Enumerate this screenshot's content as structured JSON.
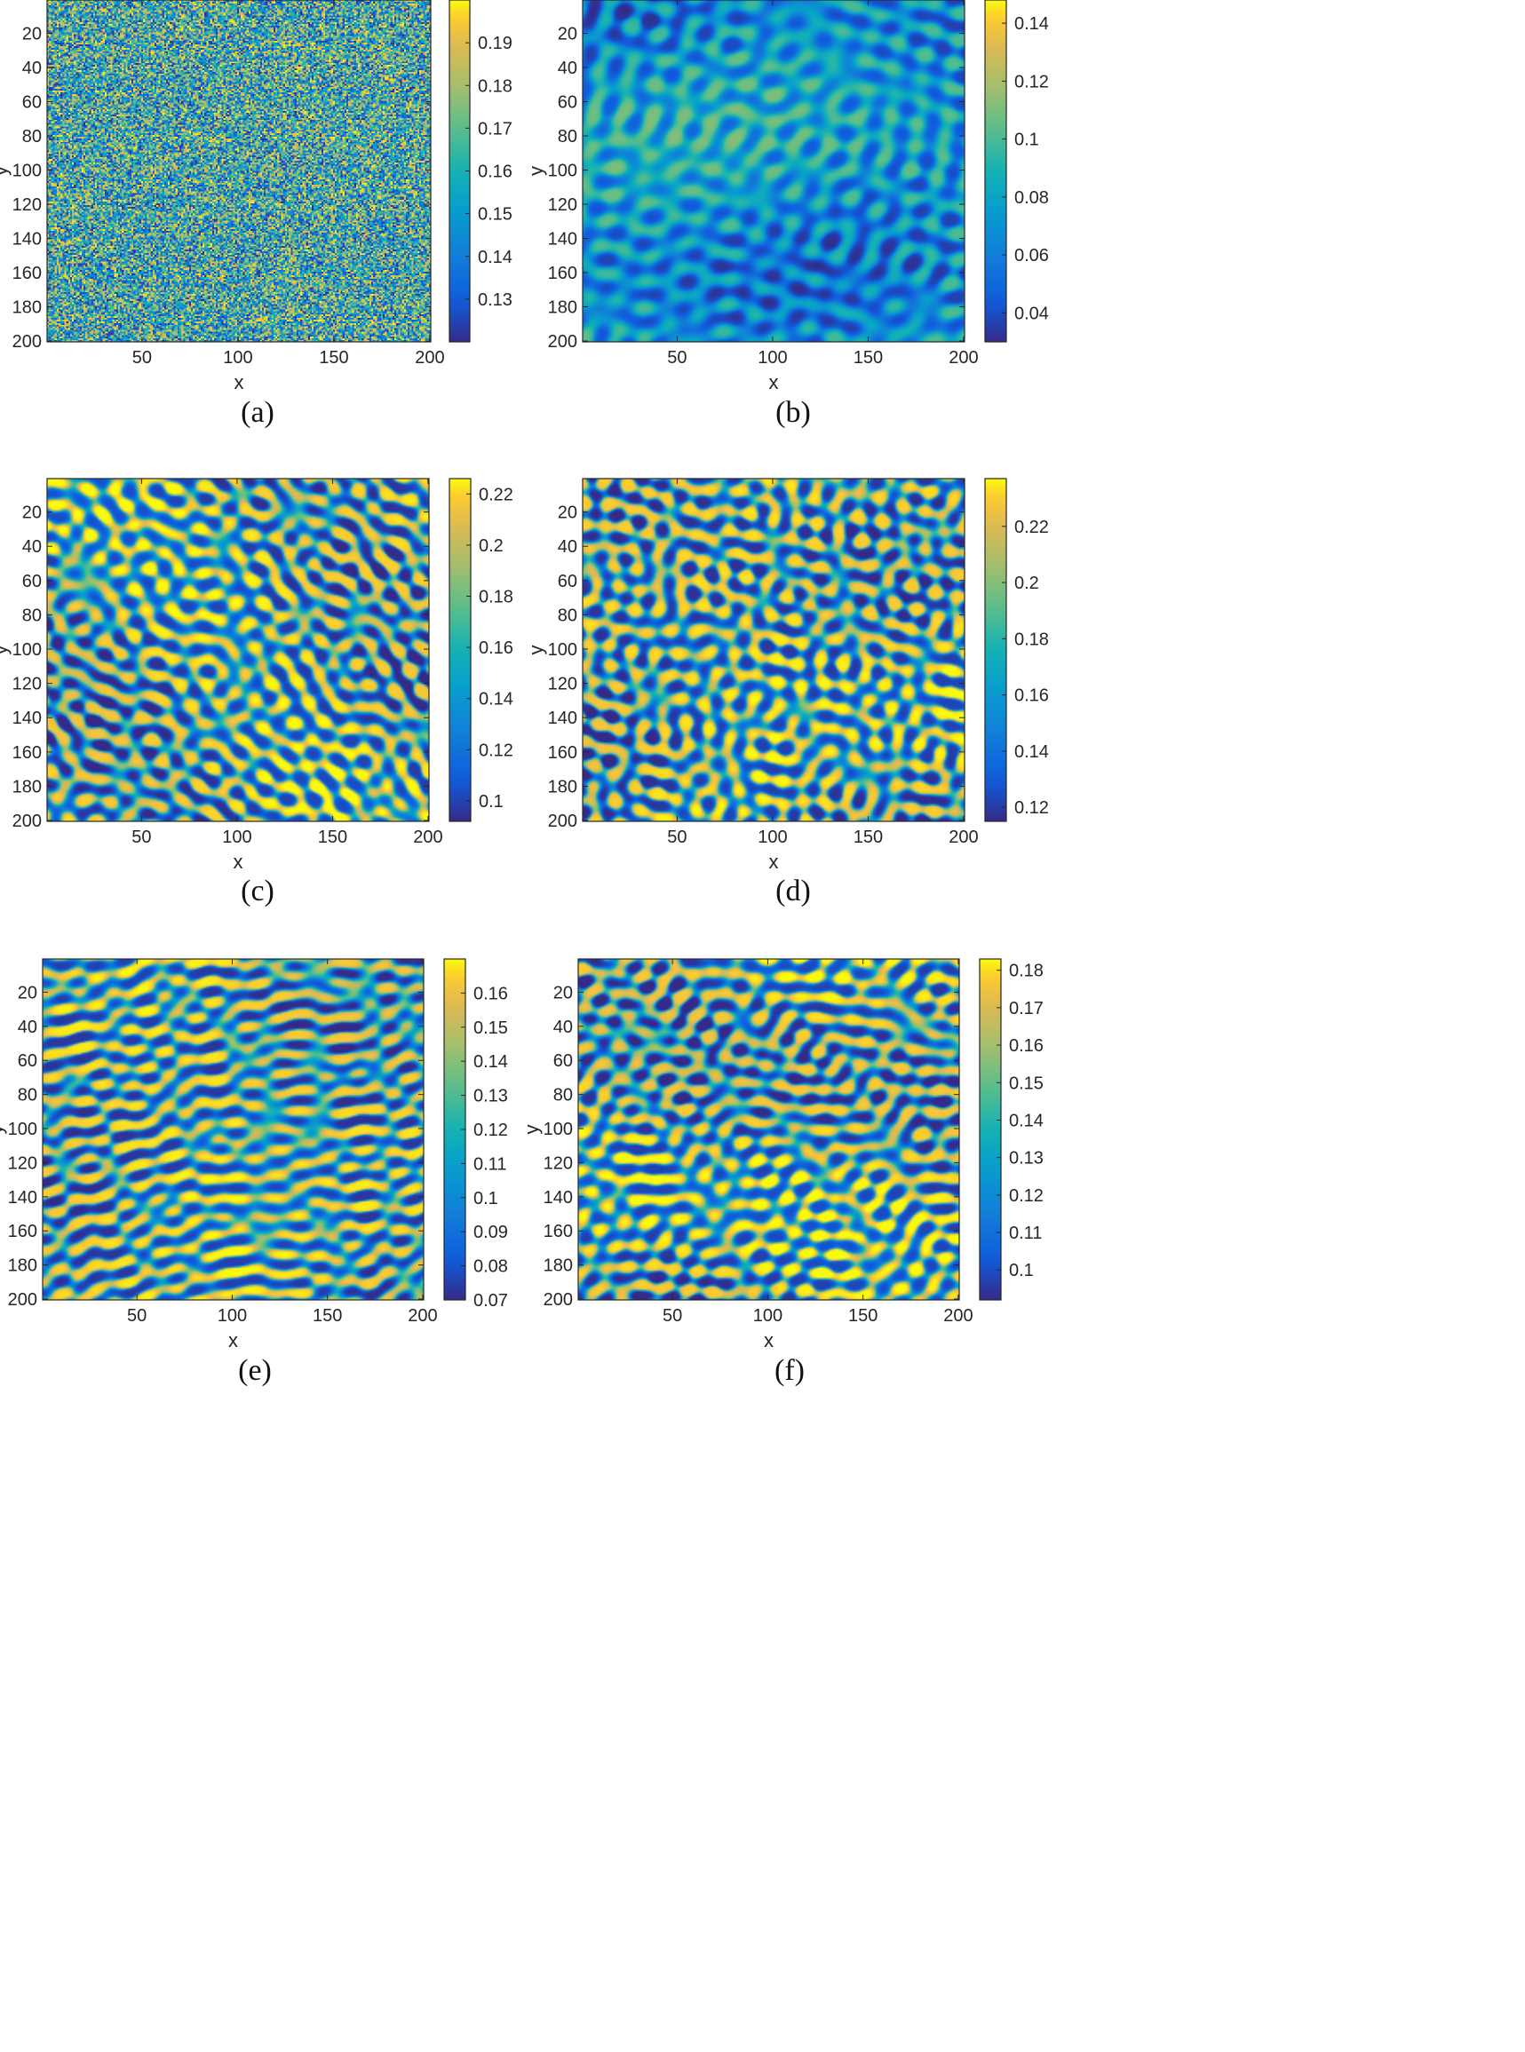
{
  "figure": {
    "captions": [
      "(a)",
      "(b)",
      "(c)",
      "(d)",
      "(e)",
      "(f)"
    ]
  },
  "chart_data": [
    {
      "type": "heatmap",
      "caption": "(a)",
      "xlabel": "x",
      "ylabel": "y",
      "x_ticks": [
        50,
        100,
        150,
        200
      ],
      "y_ticks": [
        20,
        40,
        60,
        80,
        100,
        120,
        140,
        160,
        180,
        200
      ],
      "xlim": [
        1,
        200
      ],
      "ylim": [
        1,
        200
      ],
      "y_direction": "reversed",
      "colormap": "parula",
      "color_range": [
        0.12,
        0.2
      ],
      "colorbar_ticks": [
        0.13,
        0.14,
        0.15,
        0.16,
        0.17,
        0.18,
        0.19
      ],
      "pattern": "random noise"
    },
    {
      "type": "heatmap",
      "caption": "(b)",
      "xlabel": "x",
      "ylabel": "y",
      "x_ticks": [
        50,
        100,
        150,
        200
      ],
      "y_ticks": [
        20,
        40,
        60,
        80,
        100,
        120,
        140,
        160,
        180,
        200
      ],
      "xlim": [
        1,
        200
      ],
      "ylim": [
        1,
        200
      ],
      "y_direction": "reversed",
      "colormap": "parula",
      "color_range": [
        0.03,
        0.148
      ],
      "colorbar_ticks": [
        0.04,
        0.06,
        0.08,
        0.1,
        0.12,
        0.14
      ],
      "pattern": "spots and short stripes"
    },
    {
      "type": "heatmap",
      "caption": "(c)",
      "xlabel": "x",
      "ylabel": "y",
      "x_ticks": [
        50,
        100,
        150,
        200
      ],
      "y_ticks": [
        20,
        40,
        60,
        80,
        100,
        120,
        140,
        160,
        180,
        200
      ],
      "xlim": [
        1,
        200
      ],
      "ylim": [
        1,
        200
      ],
      "y_direction": "reversed",
      "colormap": "parula",
      "color_range": [
        0.092,
        0.226
      ],
      "colorbar_ticks": [
        0.1,
        0.12,
        0.14,
        0.16,
        0.18,
        0.2,
        0.22
      ],
      "pattern": "labyrinth stripes"
    },
    {
      "type": "heatmap",
      "caption": "(d)",
      "xlabel": "x",
      "ylabel": "y",
      "x_ticks": [
        50,
        100,
        150,
        200
      ],
      "y_ticks": [
        20,
        40,
        60,
        80,
        100,
        120,
        140,
        160,
        180,
        200
      ],
      "xlim": [
        1,
        200
      ],
      "ylim": [
        1,
        200
      ],
      "y_direction": "reversed",
      "colormap": "parula",
      "color_range": [
        0.115,
        0.237
      ],
      "colorbar_ticks": [
        0.12,
        0.14,
        0.16,
        0.18,
        0.2,
        0.22
      ],
      "pattern": "labyrinth stripes"
    },
    {
      "type": "heatmap",
      "caption": "(e)",
      "xlabel": "x",
      "ylabel": "y",
      "x_ticks": [
        50,
        100,
        150,
        200
      ],
      "y_ticks": [
        20,
        40,
        60,
        80,
        100,
        120,
        140,
        160,
        180,
        200
      ],
      "xlim": [
        1,
        200
      ],
      "ylim": [
        1,
        200
      ],
      "y_direction": "reversed",
      "colormap": "parula",
      "color_range": [
        0.07,
        0.17
      ],
      "colorbar_ticks": [
        0.07,
        0.08,
        0.09,
        0.1,
        0.11,
        0.12,
        0.13,
        0.14,
        0.15,
        0.16
      ],
      "pattern": "labyrinth stripes"
    },
    {
      "type": "heatmap",
      "caption": "(f)",
      "xlabel": "x",
      "ylabel": "y",
      "x_ticks": [
        50,
        100,
        150,
        200
      ],
      "y_ticks": [
        20,
        40,
        60,
        80,
        100,
        120,
        140,
        160,
        180,
        200
      ],
      "xlim": [
        1,
        200
      ],
      "ylim": [
        1,
        200
      ],
      "y_direction": "reversed",
      "colormap": "parula",
      "color_range": [
        0.092,
        0.183
      ],
      "colorbar_ticks": [
        0.1,
        0.11,
        0.12,
        0.13,
        0.14,
        0.15,
        0.16,
        0.17,
        0.18
      ],
      "pattern": "labyrinth stripes"
    }
  ]
}
